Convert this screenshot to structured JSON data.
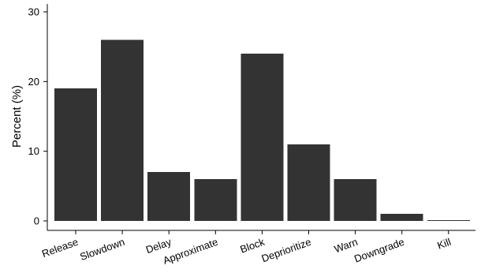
{
  "chart_data": {
    "type": "bar",
    "title": "",
    "xlabel": "",
    "ylabel": "Percent (%)",
    "ylim": [
      0,
      30
    ],
    "yticks": [
      0,
      10,
      20,
      30
    ],
    "grid": false,
    "legend": "none",
    "bar_color": "#333333",
    "categories": [
      "Release",
      "Slowdown",
      "Delay",
      "Approximate",
      "Block",
      "Deprioritize",
      "Warn",
      "Downgrade",
      "Kill"
    ],
    "values": [
      19,
      26,
      7,
      6,
      24,
      11,
      6,
      1,
      0.1
    ]
  }
}
